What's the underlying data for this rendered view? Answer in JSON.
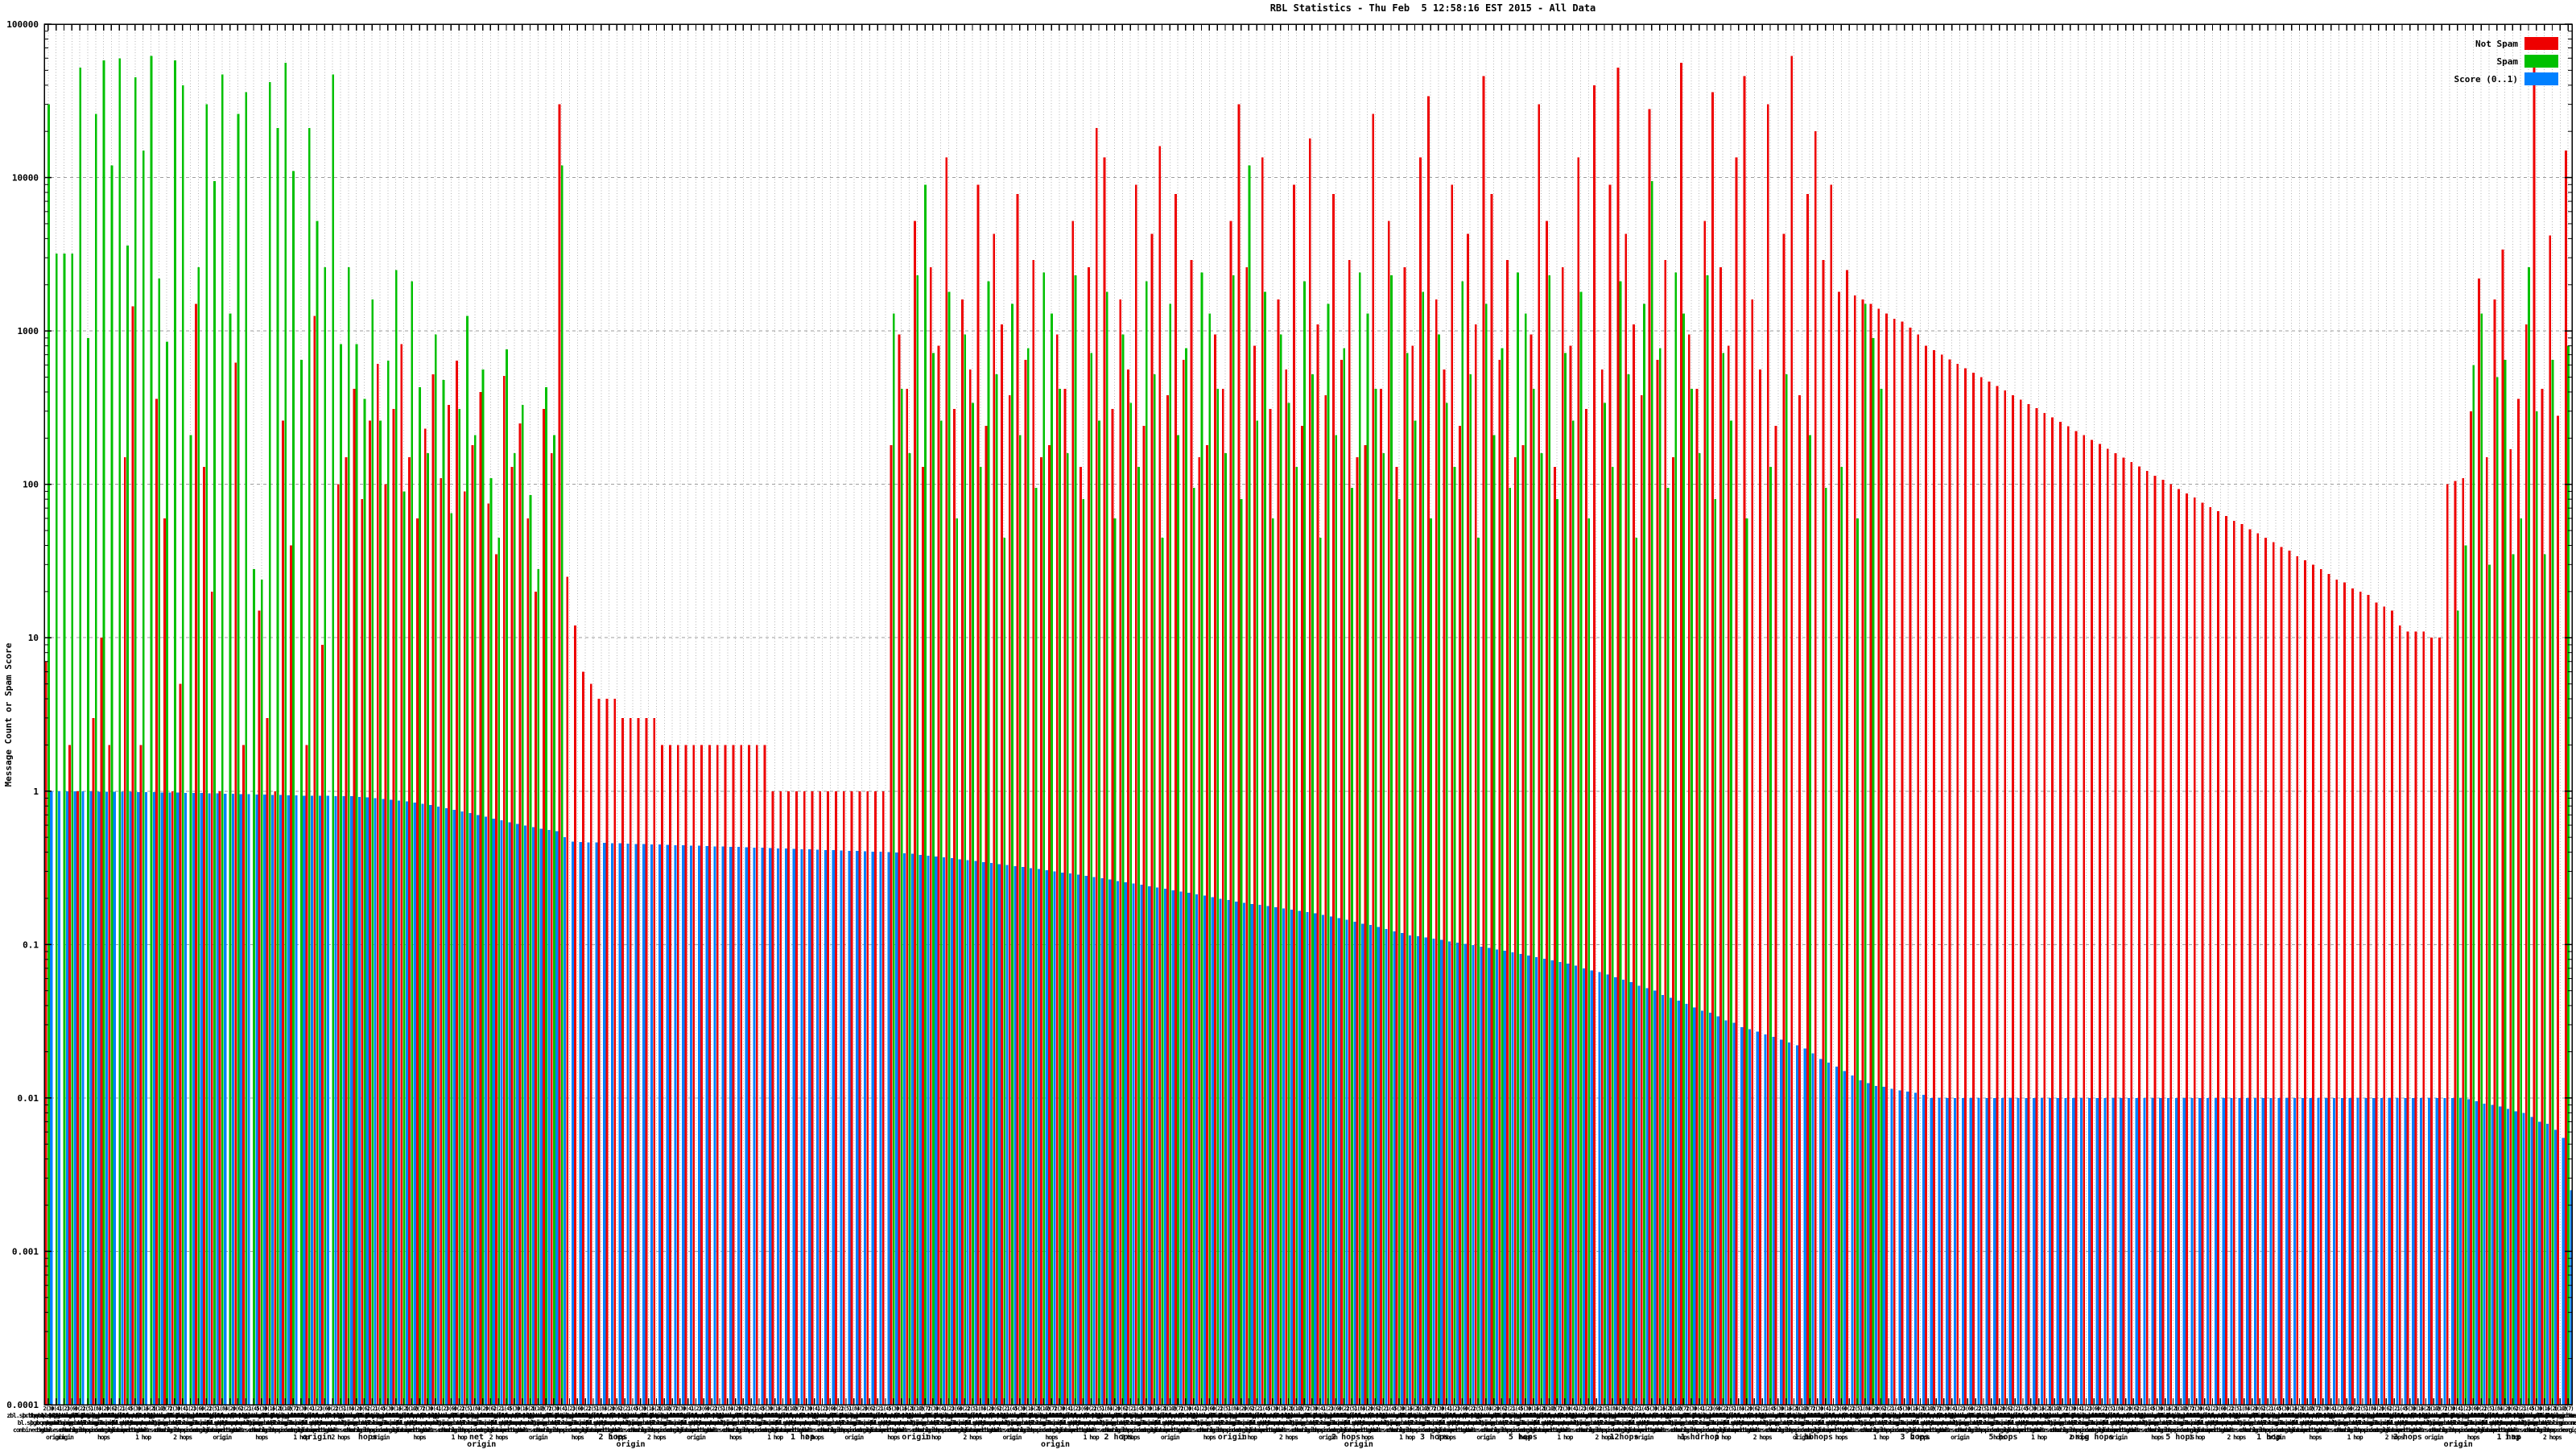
{
  "title": "RBL Statistics - Thu Feb  5 12:58:16 EST 2015 - All Data",
  "y_axis": {
    "label": "Message Count or Spam Score",
    "ticks": [
      "100000",
      "10000",
      "1000",
      "100",
      "10",
      "1",
      "0.1",
      "0.01",
      "0.001",
      "0.0001"
    ],
    "tick_values": [
      100000,
      10000,
      1000,
      100,
      10,
      1,
      0.1,
      0.01,
      0.001,
      0.0001
    ]
  },
  "legend": [
    {
      "label": "Not Spam",
      "color": "#ee0000"
    },
    {
      "label": "Spam",
      "color": "#00c000"
    },
    {
      "label": "Score (0..1)",
      "color": "#0080ff"
    }
  ],
  "colors": {
    "not_spam": "#ee0000",
    "spam": "#00c000",
    "score": "#0080ff",
    "grid_v": "#b5b5b5",
    "grid_h": "#9e9e9e",
    "border": "#000000",
    "background": "#ffffff"
  },
  "x_axis": {
    "tick_smear_pool": [
      "2(3)",
      "0(4)",
      "1(2)",
      "3(6)",
      "0(2)",
      "2(5)",
      "1(8)",
      "4(2)",
      "0(6)",
      "2(2)",
      "1(4)",
      "5(3)",
      "0(1)",
      "6(2)",
      "1(10)",
      "2(7)"
    ],
    "label_smear_pool": [
      "zbl.sprbhqus.dbl.origin.net",
      "b.bqrrqcudqcentrql.org",
      "dnsbl.sorbs.nethops.org",
      "bl.spgmcop.netorigin",
      "psbl.surrielhops.com",
      "combined.gbuse.chorigin",
      "dnsbl-1.uceprotect.net",
      "bl.mqilspike.nethops",
      "ix.dnsbl.mqnitu.net",
      "spqm.dnsbl.qnonmqils.de",
      "bl.blocklist.dehops",
      "dnsbl.inps.deorigin.net"
    ],
    "short_smear_pool": [
      "origin",
      "hops",
      "1 hop",
      "2 hops"
    ],
    "row_starters": [
      "spam",
      "origin"
    ],
    "sublabels": [
      {
        "pos": 0.108,
        "text": "origin",
        "row": 0
      },
      {
        "pos": 0.128,
        "text": "hops",
        "row": 0
      },
      {
        "pos": 0.171,
        "text": "net",
        "row": 0
      },
      {
        "pos": 0.173,
        "text": "origin",
        "row": 1
      },
      {
        "pos": 0.225,
        "text": "2 hops",
        "row": 0
      },
      {
        "pos": 0.232,
        "text": "origin",
        "row": 1
      },
      {
        "pos": 0.3,
        "text": "1 hop",
        "row": 0
      },
      {
        "pos": 0.345,
        "text": "origin",
        "row": 0
      },
      {
        "pos": 0.4,
        "text": "origin",
        "row": 1
      },
      {
        "pos": 0.425,
        "text": "2 hops",
        "row": 0
      },
      {
        "pos": 0.47,
        "text": "origin",
        "row": 0
      },
      {
        "pos": 0.515,
        "text": "2 hops",
        "row": 0
      },
      {
        "pos": 0.52,
        "text": "origin",
        "row": 1
      },
      {
        "pos": 0.55,
        "text": "3 hops",
        "row": 0
      },
      {
        "pos": 0.585,
        "text": "5 hops",
        "row": 0
      },
      {
        "pos": 0.625,
        "text": "12hops",
        "row": 0
      },
      {
        "pos": 0.655,
        "text": "1 hdrhop",
        "row": 0
      },
      {
        "pos": 0.7,
        "text": "1 hbhops",
        "row": 0
      },
      {
        "pos": 0.74,
        "text": "3 hops",
        "row": 0
      },
      {
        "pos": 0.775,
        "text": "5 hops",
        "row": 0
      },
      {
        "pos": 0.81,
        "text": "orig hops",
        "row": 0
      },
      {
        "pos": 0.845,
        "text": "5 hops",
        "row": 0
      },
      {
        "pos": 0.88,
        "text": "1 hop",
        "row": 0
      },
      {
        "pos": 0.935,
        "text": "3 hops",
        "row": 0
      },
      {
        "pos": 0.955,
        "text": "origin",
        "row": 1
      },
      {
        "pos": 0.975,
        "text": "1 hop",
        "row": 0
      }
    ]
  },
  "chart_data": {
    "type": "bar",
    "title": "RBL Statistics - Thu Feb  5 12:58:16 EST 2015 - All Data",
    "xlabel": "",
    "ylabel": "Message Count or Spam Score",
    "y_log": true,
    "ylim": [
      0.0001,
      100000
    ],
    "grid": true,
    "legend_position": "top-right",
    "n_categories": 320,
    "series": [
      {
        "name": "Not Spam",
        "color": "#ee0000",
        "values": [
          7,
          0,
          0,
          2,
          1,
          0,
          3,
          10,
          2,
          0,
          150,
          1450,
          2,
          0,
          360,
          60,
          1,
          5,
          0,
          1500,
          130,
          20,
          1,
          0,
          620,
          2,
          0,
          15,
          3,
          1,
          260,
          40,
          0,
          2,
          1250,
          9,
          0,
          100,
          150,
          420,
          80,
          260,
          610,
          100,
          310,
          820,
          150,
          60,
          230,
          520,
          110,
          330,
          640,
          90,
          180,
          400,
          75,
          35,
          510,
          130,
          250,
          60,
          20,
          310,
          160,
          30000,
          25,
          12,
          6,
          5,
          4,
          4,
          4,
          3,
          3,
          3,
          3,
          3,
          2,
          2,
          2,
          2,
          2,
          2,
          2,
          2,
          2,
          2,
          2,
          2,
          2,
          2,
          1,
          1,
          1,
          1,
          1,
          1,
          1,
          1,
          1,
          1,
          1,
          1,
          1,
          1,
          1,
          180,
          950,
          420,
          5200,
          130,
          2600,
          800,
          13500,
          310,
          1600,
          560,
          9000,
          240,
          4300,
          1100,
          380,
          7800,
          650,
          2900,
          150,
          180,
          950,
          420,
          5200,
          130,
          2600,
          21000,
          13500,
          310,
          1600,
          560,
          9000,
          240,
          4300,
          16000,
          380,
          7800,
          650,
          2900,
          150,
          180,
          950,
          420,
          5200,
          30000,
          2600,
          800,
          13500,
          310,
          1600,
          560,
          9000,
          240,
          18000,
          1100,
          380,
          7800,
          650,
          2900,
          150,
          180,
          26000,
          420,
          5200,
          130,
          2600,
          800,
          13500,
          34000,
          1600,
          560,
          9000,
          240,
          4300,
          1100,
          46000,
          7800,
          650,
          2900,
          150,
          180,
          950,
          30000,
          5200,
          130,
          2600,
          800,
          13500,
          310,
          40000,
          560,
          9000,
          52000,
          4300,
          1100,
          380,
          28000,
          650,
          2900,
          150,
          56000,
          950,
          420,
          5200,
          36000,
          2600,
          800,
          13500,
          46000,
          1600,
          560,
          30000,
          240,
          4300,
          62000,
          380,
          7800,
          20000,
          2900,
          9000,
          1800,
          2500,
          1700,
          1600,
          1500,
          1400,
          1300,
          1200,
          1150,
          1050,
          950,
          800,
          748,
          700,
          654,
          612,
          572,
          535,
          500,
          468,
          437,
          409,
          382,
          357,
          334,
          313,
          292,
          273,
          256,
          239,
          223,
          209,
          195,
          183,
          171,
          160,
          149,
          140,
          131,
          122,
          114,
          107,
          100,
          93,
          87,
          82,
          76,
          71,
          67,
          62,
          58,
          55,
          51,
          48,
          45,
          42,
          39,
          37,
          34,
          32,
          30,
          28,
          26,
          24,
          23,
          21,
          20,
          19,
          17,
          16,
          15,
          12,
          11,
          11,
          11,
          10,
          10,
          100,
          105,
          110,
          300,
          2200,
          150,
          1600,
          3400,
          170,
          360,
          1100,
          52000,
          420,
          4200,
          280,
          15000
        ]
      },
      {
        "name": "Spam",
        "color": "#00c000",
        "values": [
          30000,
          3200,
          3200,
          3200,
          52000,
          900,
          26000,
          58000,
          12000,
          60000,
          3600,
          45000,
          15000,
          62000,
          2200,
          850,
          58000,
          40000,
          210,
          2600,
          30000,
          9500,
          47000,
          1300,
          26000,
          36000,
          28,
          24,
          42000,
          21000,
          56000,
          11000,
          650,
          21000,
          5200,
          2600,
          47000,
          820,
          2600,
          820,
          360,
          1600,
          260,
          640,
          2500,
          90,
          2100,
          430,
          160,
          950,
          480,
          65,
          310,
          1250,
          210,
          560,
          110,
          45,
          760,
          160,
          330,
          85,
          28,
          430,
          210,
          12000,
          0,
          0,
          0,
          0,
          0,
          0,
          0,
          0,
          0,
          0,
          0,
          0,
          0,
          0,
          0,
          0,
          0,
          0,
          0,
          0,
          0,
          0,
          0,
          0,
          0,
          0,
          0,
          0,
          0,
          0,
          0,
          0,
          0,
          0,
          0,
          0,
          0,
          0,
          0,
          0,
          0,
          1300,
          420,
          160,
          2300,
          9000,
          720,
          260,
          1800,
          60,
          950,
          340,
          130,
          2100,
          520,
          45,
          1500,
          210,
          770,
          95,
          2400,
          1300,
          420,
          160,
          2300,
          80,
          720,
          260,
          1800,
          60,
          950,
          340,
          130,
          2100,
          520,
          45,
          1500,
          210,
          770,
          95,
          2400,
          1300,
          420,
          160,
          2300,
          80,
          12000,
          260,
          1800,
          60,
          950,
          340,
          130,
          2100,
          520,
          45,
          1500,
          210,
          770,
          95,
          2400,
          1300,
          420,
          160,
          2300,
          80,
          720,
          260,
          1800,
          60,
          950,
          340,
          130,
          2100,
          520,
          45,
          1500,
          210,
          770,
          95,
          2400,
          1300,
          420,
          160,
          2300,
          80,
          720,
          260,
          1800,
          60,
          0,
          340,
          130,
          2100,
          520,
          45,
          1500,
          9500,
          770,
          95,
          2400,
          1300,
          420,
          160,
          2300,
          80,
          720,
          260,
          0,
          60,
          0,
          0,
          130,
          0,
          520,
          0,
          0,
          210,
          0,
          95,
          0,
          130,
          0,
          60,
          1500,
          900,
          420,
          0,
          0,
          0,
          0,
          0,
          0,
          0,
          0,
          0,
          0,
          0,
          0,
          0,
          0,
          0,
          0,
          0,
          0,
          0,
          0,
          0,
          0,
          0,
          0,
          0,
          0,
          0,
          0,
          0,
          0,
          0,
          0,
          0,
          0,
          0,
          0,
          0,
          0,
          0,
          0,
          0,
          0,
          0,
          0,
          0,
          0,
          0,
          0,
          0,
          0,
          0,
          0,
          0,
          0,
          0,
          0,
          0,
          0,
          0,
          0,
          0,
          0,
          0,
          0,
          0,
          0,
          0,
          0,
          0,
          0,
          0,
          0,
          15,
          40,
          600,
          1300,
          30,
          500,
          650,
          35,
          60,
          2600,
          300,
          35,
          650,
          0,
          800
        ]
      },
      {
        "name": "Score (0..1)",
        "color": "#0080ff",
        "values": [
          1.0,
          0.999,
          0.998,
          0.997,
          0.996,
          0.995,
          0.994,
          0.993,
          0.992,
          0.991,
          0.99,
          0.988,
          0.986,
          0.984,
          0.982,
          0.98,
          0.978,
          0.976,
          0.974,
          0.972,
          0.97,
          0.967,
          0.964,
          0.961,
          0.958,
          0.955,
          0.952,
          0.949,
          0.946,
          0.943,
          0.94,
          0.938,
          0.936,
          0.934,
          0.932,
          0.931,
          0.93,
          0.93,
          0.925,
          0.918,
          0.91,
          0.901,
          0.891,
          0.88,
          0.868,
          0.855,
          0.841,
          0.826,
          0.81,
          0.793,
          0.775,
          0.757,
          0.738,
          0.719,
          0.7,
          0.681,
          0.662,
          0.644,
          0.627,
          0.611,
          0.596,
          0.582,
          0.57,
          0.559,
          0.55,
          0.5,
          0.47,
          0.465,
          0.463,
          0.462,
          0.46,
          0.458,
          0.457,
          0.455,
          0.453,
          0.452,
          0.45,
          0.448,
          0.447,
          0.445,
          0.443,
          0.442,
          0.44,
          0.438,
          0.437,
          0.435,
          0.433,
          0.432,
          0.43,
          0.428,
          0.427,
          0.425,
          0.423,
          0.422,
          0.42,
          0.418,
          0.417,
          0.415,
          0.413,
          0.412,
          0.41,
          0.408,
          0.407,
          0.405,
          0.403,
          0.402,
          0.401,
          0.398,
          0.394,
          0.39,
          0.385,
          0.38,
          0.375,
          0.37,
          0.365,
          0.36,
          0.355,
          0.35,
          0.345,
          0.34,
          0.335,
          0.33,
          0.325,
          0.32,
          0.315,
          0.31,
          0.305,
          0.3,
          0.295,
          0.29,
          0.285,
          0.28,
          0.275,
          0.27,
          0.265,
          0.26,
          0.255,
          0.25,
          0.245,
          0.24,
          0.235,
          0.231,
          0.226,
          0.222,
          0.217,
          0.213,
          0.208,
          0.204,
          0.199,
          0.195,
          0.19,
          0.187,
          0.184,
          0.181,
          0.178,
          0.175,
          0.172,
          0.169,
          0.166,
          0.163,
          0.16,
          0.156,
          0.152,
          0.149,
          0.145,
          0.141,
          0.137,
          0.134,
          0.13,
          0.126,
          0.122,
          0.119,
          0.115,
          0.113,
          0.111,
          0.109,
          0.107,
          0.105,
          0.103,
          0.101,
          0.099,
          0.097,
          0.095,
          0.093,
          0.091,
          0.089,
          0.087,
          0.085,
          0.083,
          0.081,
          0.079,
          0.077,
          0.075,
          0.073,
          0.07,
          0.068,
          0.066,
          0.064,
          0.061,
          0.059,
          0.057,
          0.054,
          0.052,
          0.05,
          0.047,
          0.045,
          0.043,
          0.041,
          0.039,
          0.037,
          0.036,
          0.034,
          0.032,
          0.031,
          0.029,
          0.028,
          0.027,
          0.026,
          0.025,
          0.024,
          0.023,
          0.022,
          0.021,
          0.0195,
          0.018,
          0.017,
          0.016,
          0.015,
          0.014,
          0.013,
          0.0125,
          0.012,
          0.0118,
          0.0115,
          0.0112,
          0.011,
          0.0108,
          0.0105,
          0.01,
          0.01,
          0.01,
          0.01,
          0.01,
          0.01,
          0.01,
          0.01,
          0.01,
          0.01,
          0.01,
          0.01,
          0.01,
          0.01,
          0.01,
          0.01,
          0.01,
          0.01,
          0.01,
          0.01,
          0.01,
          0.01,
          0.01,
          0.01,
          0.01,
          0.01,
          0.01,
          0.01,
          0.01,
          0.01,
          0.01,
          0.01,
          0.01,
          0.01,
          0.01,
          0.01,
          0.01,
          0.01,
          0.01,
          0.01,
          0.01,
          0.01,
          0.01,
          0.01,
          0.01,
          0.01,
          0.01,
          0.01,
          0.01,
          0.01,
          0.01,
          0.01,
          0.01,
          0.01,
          0.01,
          0.01,
          0.01,
          0.01,
          0.01,
          0.01,
          0.01,
          0.01,
          0.01,
          0.01,
          0.01,
          0.01,
          0.01,
          0.01,
          0.0098,
          0.0095,
          0.0092,
          0.009,
          0.0088,
          0.0085,
          0.0082,
          0.008,
          0.0075,
          0.007,
          0.0068,
          0.0062,
          0.0055,
          0.0025
        ]
      }
    ]
  }
}
